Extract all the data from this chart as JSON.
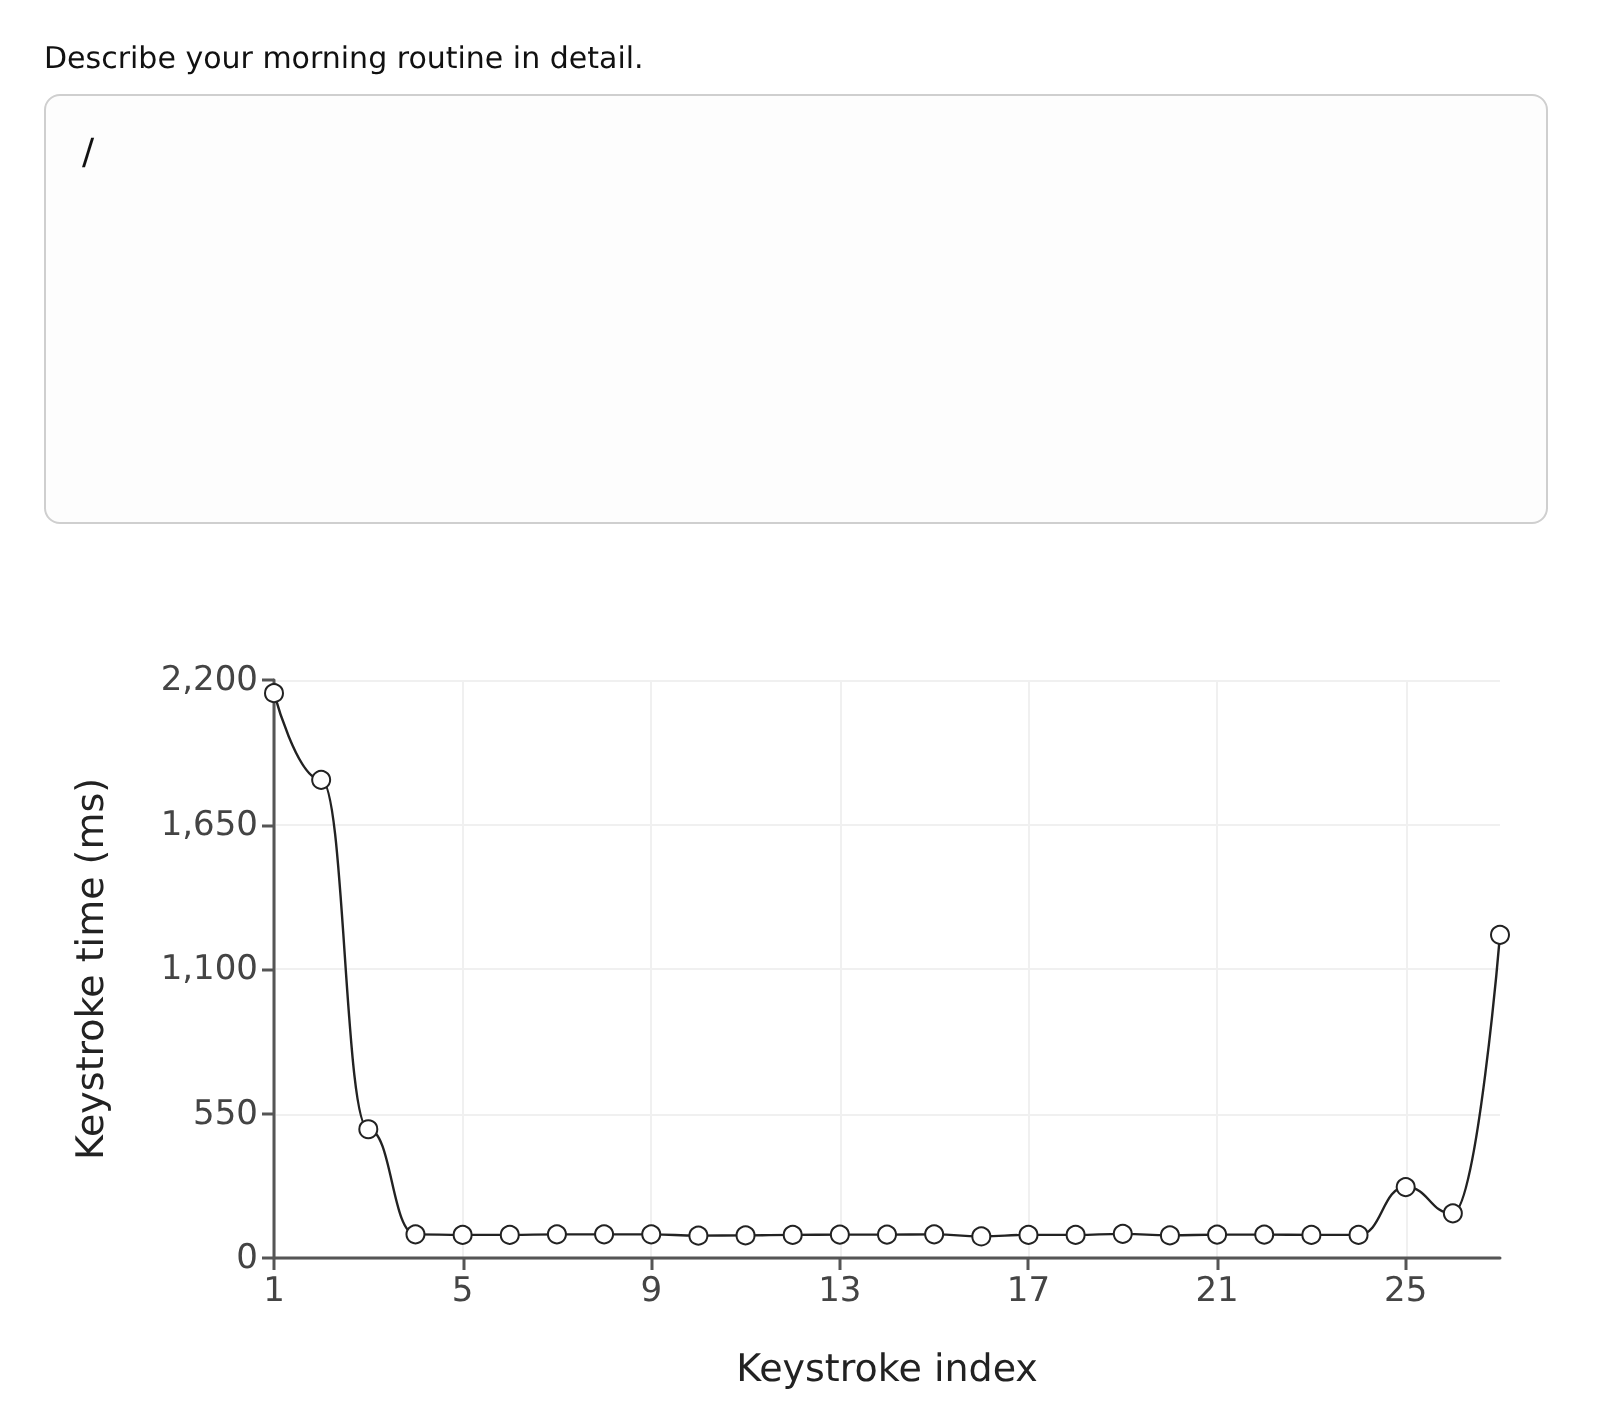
{
  "chart_data": {
    "type": "line",
    "title": "Describe your morning routine in detail.",
    "annotations": [
      "/"
    ],
    "xlabel": "Keystroke index",
    "ylabel": "Keystroke time (ms)",
    "x": [
      1,
      2,
      3,
      4,
      5,
      6,
      7,
      8,
      9,
      10,
      11,
      12,
      13,
      14,
      15,
      16,
      17,
      18,
      19,
      20,
      21,
      22,
      23,
      24,
      25,
      26,
      27
    ],
    "values": [
      2150,
      1820,
      490,
      90,
      88,
      88,
      90,
      90,
      90,
      85,
      86,
      88,
      89,
      89,
      90,
      82,
      88,
      88,
      92,
      86,
      89,
      89,
      88,
      88,
      270,
      170,
      1230
    ],
    "color": "#222222",
    "marker": "circle",
    "xlim": [
      1,
      27
    ],
    "xticks": [
      1,
      5,
      9,
      13,
      17,
      21,
      25
    ],
    "ylim": [
      0,
      2200
    ],
    "yticks": [
      0,
      550,
      {
        "value": 1100,
        "label": "1,100"
      },
      {
        "value": 1650,
        "label": "1,650"
      },
      {
        "value": 2200,
        "label": "2,200"
      }
    ],
    "grid": true
  }
}
